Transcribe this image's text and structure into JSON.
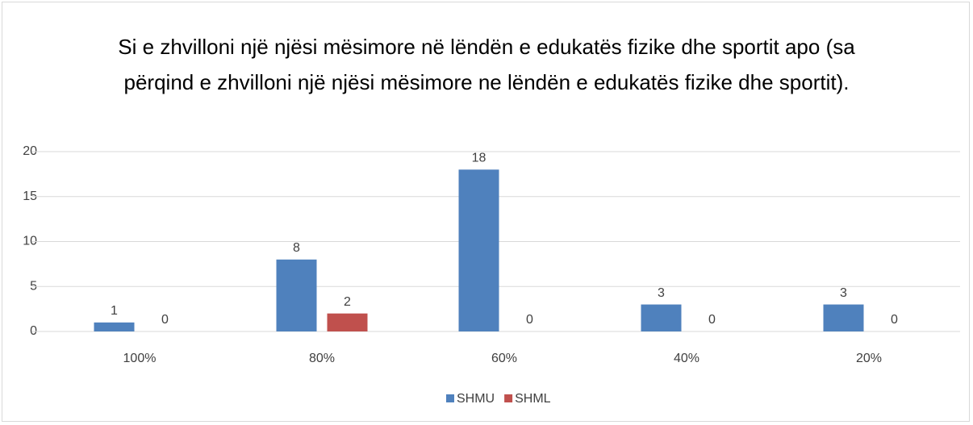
{
  "chart_data": {
    "type": "bar",
    "title": "Si e zhvilloni një njësi mësimore në lëndën e edukatës fizike dhe sportit apo (sa përqind e zhvilloni një njësi mësimore ne lëndën e edukatës fizike dhe sportit).",
    "categories": [
      "100%",
      "80%",
      "60%",
      "40%",
      "20%"
    ],
    "series": [
      {
        "name": "SHMU",
        "color": "#4f81bd",
        "values": [
          1,
          8,
          18,
          3,
          3
        ]
      },
      {
        "name": "SHML",
        "color": "#c0504d",
        "values": [
          0,
          2,
          0,
          0,
          0
        ]
      }
    ],
    "ylim": [
      0,
      20
    ],
    "yticks": [
      0,
      5,
      10,
      15,
      20
    ],
    "grid": true,
    "legend": "bottom"
  }
}
